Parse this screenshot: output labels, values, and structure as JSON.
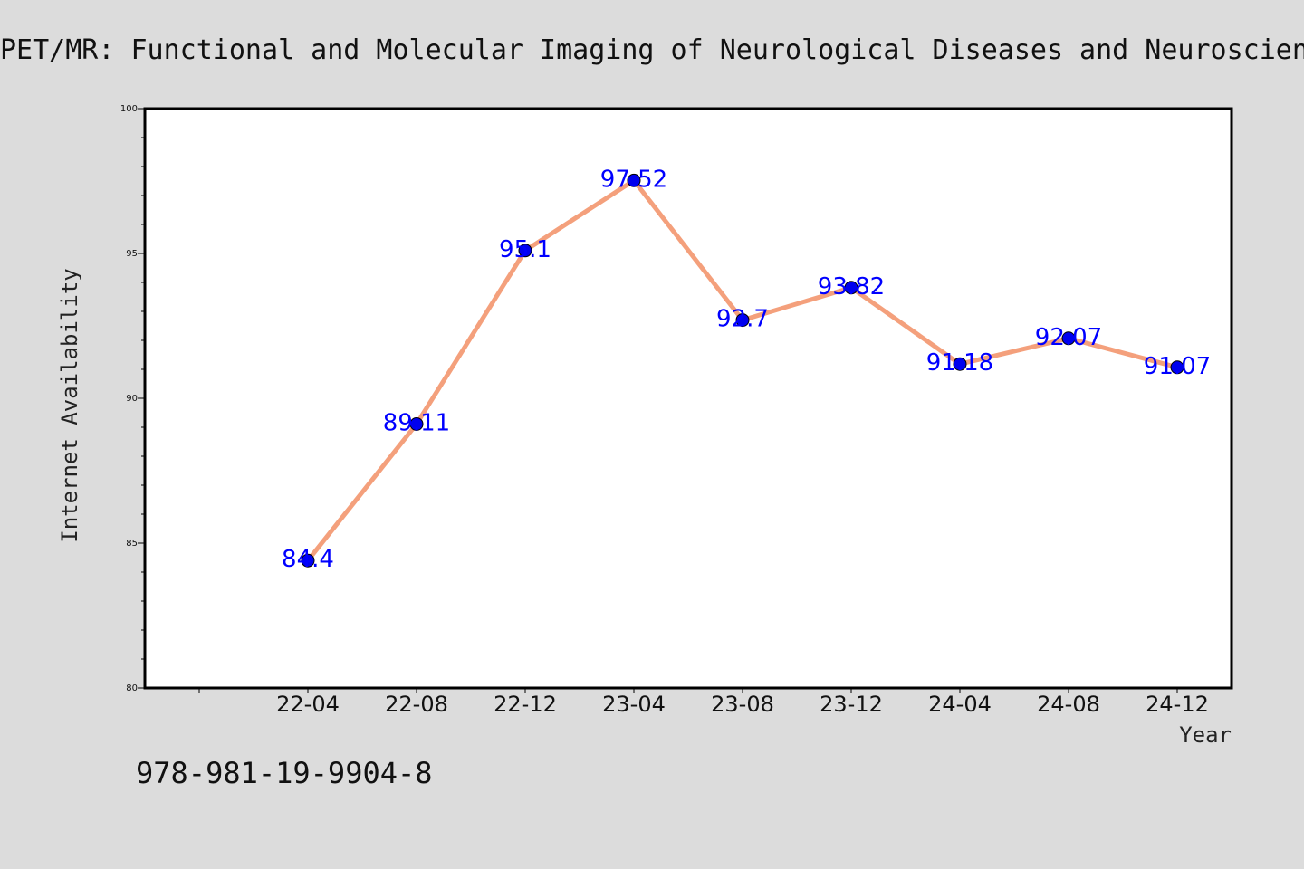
{
  "chart_data": {
    "type": "line",
    "title": "PET/MR: Functional and Molecular Imaging of Neurological Diseases and Neurosciences",
    "xlabel": "Year",
    "ylabel": "Internet Availability",
    "categories": [
      "22-04",
      "22-08",
      "22-12",
      "23-04",
      "23-08",
      "23-12",
      "24-04",
      "24-08",
      "24-12"
    ],
    "series": [
      {
        "values": [
          84.4,
          89.11,
          95.1,
          97.52,
          92.7,
          93.82,
          91.18,
          92.07,
          91.07
        ]
      }
    ],
    "data_labels": [
      "84.4",
      "89.11",
      "95.1",
      "97.52",
      "92.7",
      "93.82",
      "91.18",
      "92.07",
      "91.07"
    ],
    "ylim": [
      80,
      100
    ],
    "yticks": [
      "80",
      "85",
      "90",
      "95",
      "100"
    ],
    "grid": false,
    "line_color": "#f4a07c",
    "marker_color": "#0000ee",
    "label_color": "#0000ff",
    "background_color": "#dcdcdc",
    "plot_background": "#ffffff"
  },
  "footer": {
    "isbn": "978-981-19-9904-8"
  }
}
